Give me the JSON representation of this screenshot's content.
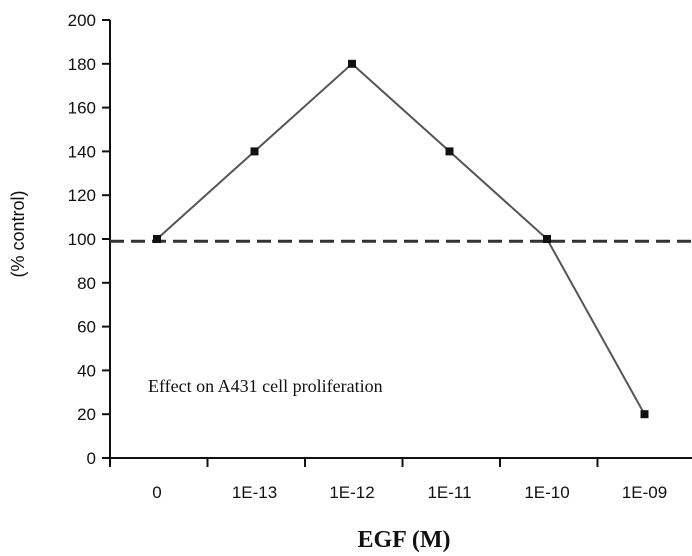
{
  "chart_data": {
    "type": "line",
    "categories": [
      "0",
      "1E-13",
      "1E-12",
      "1E-11",
      "1E-10",
      "1E-09"
    ],
    "series": [
      {
        "values": [
          100,
          140,
          180,
          140,
          100,
          20
        ],
        "color": "#555555"
      }
    ],
    "reference_line": {
      "y": 99,
      "style": "dashed",
      "color": "#333333"
    },
    "xlabel": "EGF (M)",
    "ylabel": "(% control)",
    "annotation": "Effect on A431 cell proliferation",
    "ylim": [
      0,
      200
    ],
    "yticks": [
      0,
      20,
      40,
      60,
      80,
      100,
      120,
      140,
      160,
      180,
      200
    ],
    "grid": false
  }
}
